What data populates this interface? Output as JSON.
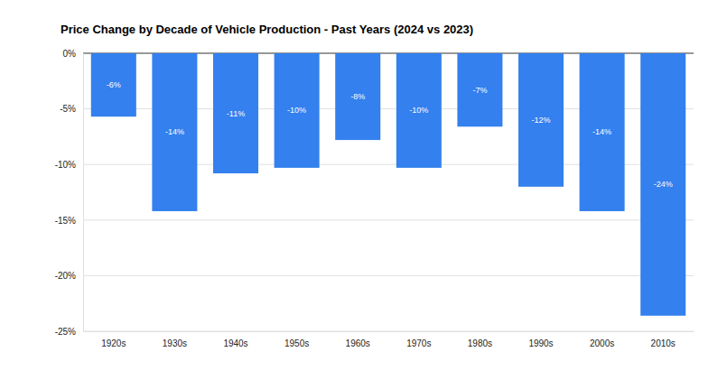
{
  "chart_data": {
    "type": "bar",
    "title": "Price Change by Decade of Vehicle Production - Past Years (2024 vs 2023)",
    "categories": [
      "1920s",
      "1930s",
      "1940s",
      "1950s",
      "1960s",
      "1970s",
      "1980s",
      "1990s",
      "2000s",
      "2010s"
    ],
    "values": [
      -5.7,
      -14.2,
      -10.8,
      -10.3,
      -7.8,
      -10.3,
      -6.6,
      -12.0,
      -14.2,
      -23.6
    ],
    "value_labels": [
      "-6%",
      "-14%",
      "-11%",
      "-10%",
      "-8%",
      "-10%",
      "-7%",
      "-12%",
      "-14%",
      "-24%"
    ],
    "color": "#3380ee",
    "ylim": [
      -25,
      0
    ],
    "yticks": [
      {
        "value": -25,
        "label": "-25%"
      },
      {
        "value": -20,
        "label": "-20%"
      },
      {
        "value": -15,
        "label": "-15%"
      },
      {
        "value": -10,
        "label": "-10%"
      },
      {
        "value": -5,
        "label": "-5%"
      },
      {
        "value": 0,
        "label": "0%"
      }
    ],
    "grid": true,
    "data_labels": true
  }
}
